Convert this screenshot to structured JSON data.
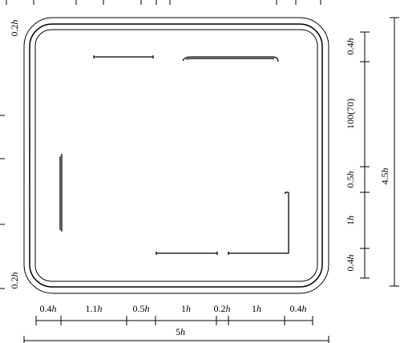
{
  "dimensions": {
    "bottom": [
      {
        "num": "0.4",
        "unit": "h"
      },
      {
        "num": "1.1",
        "unit": "h"
      },
      {
        "num": "0.5",
        "unit": "h"
      },
      {
        "num": "1",
        "unit": "h"
      },
      {
        "num": "0.2",
        "unit": "h"
      },
      {
        "num": "1",
        "unit": "h"
      },
      {
        "num": "0.4",
        "unit": "h"
      }
    ],
    "total_width": {
      "num": "5",
      "unit": "h"
    },
    "right": [
      {
        "num": "0.4",
        "unit": "h"
      },
      {
        "num": "100(70)",
        "unit": ""
      },
      {
        "num": "0.5",
        "unit": "h"
      },
      {
        "num": "1",
        "unit": "h"
      },
      {
        "num": "0.4",
        "unit": "h"
      }
    ],
    "total_height": {
      "num": "4.5",
      "unit": "h"
    },
    "left": [
      {
        "num": "0.2",
        "unit": "h"
      },
      {
        "num": "0.2",
        "unit": "h"
      }
    ]
  }
}
